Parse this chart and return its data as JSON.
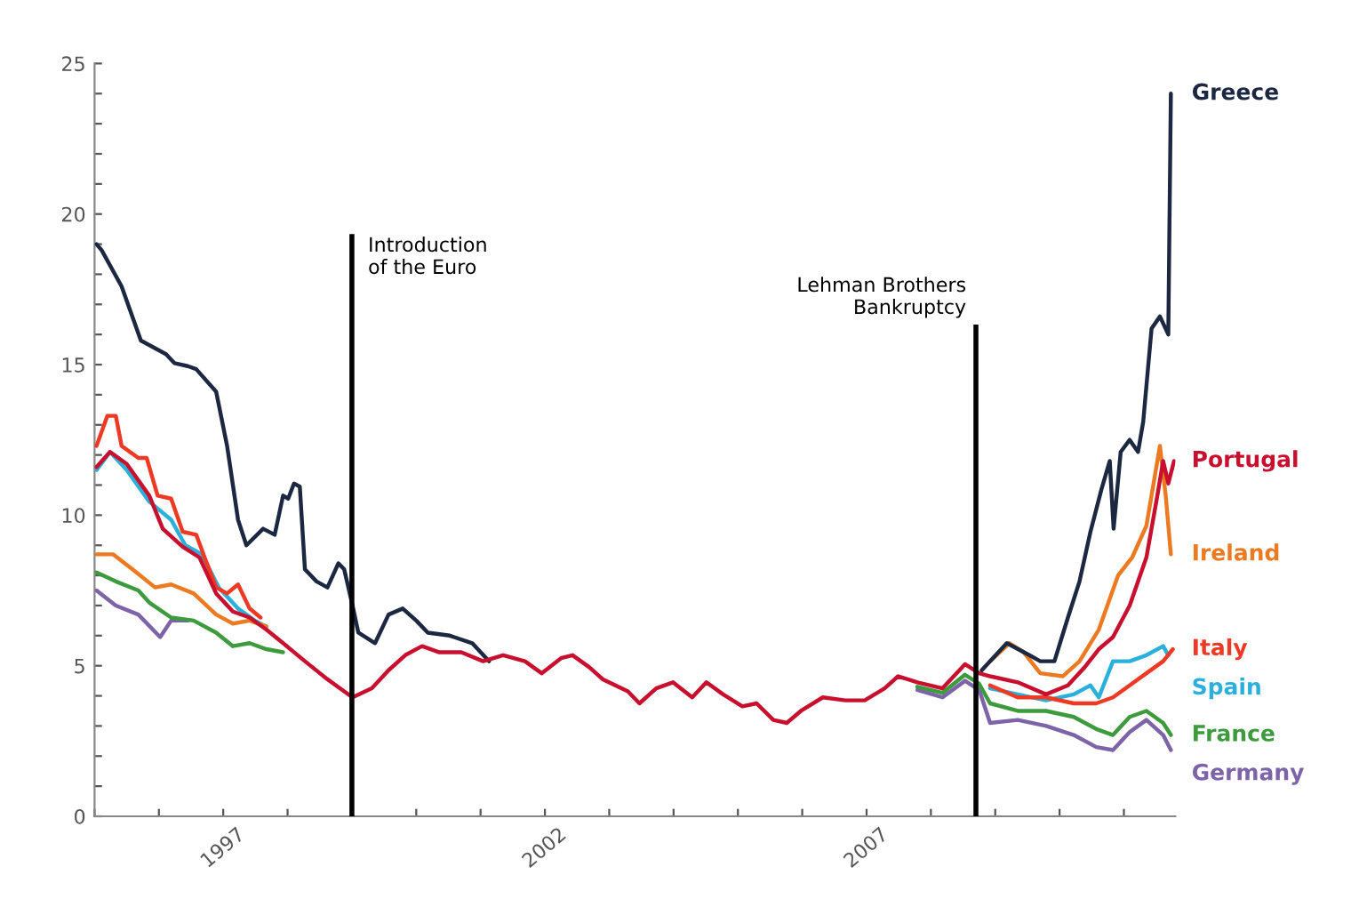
{
  "chart_data": {
    "type": "line",
    "xlim": [
      1995,
      2011.8
    ],
    "ylim": [
      0,
      25
    ],
    "xticks": [
      {
        "value": 1995,
        "label": null
      },
      {
        "value": 1996,
        "label": null
      },
      1997,
      {
        "value": 1998,
        "label": null
      },
      {
        "value": 1999,
        "label": null
      },
      {
        "value": 2000,
        "label": null
      },
      {
        "value": 2001,
        "label": null
      },
      2002,
      {
        "value": 2003,
        "label": null
      },
      {
        "value": 2004,
        "label": null
      },
      {
        "value": 2005,
        "label": null
      },
      {
        "value": 2006,
        "label": null
      },
      2007,
      {
        "value": 2008,
        "label": null
      },
      {
        "value": 2009,
        "label": null
      },
      {
        "value": 2010,
        "label": null
      },
      {
        "value": 2011,
        "label": null
      }
    ],
    "yticks": [
      0,
      {
        "value": 1,
        "label": null
      },
      {
        "value": 2,
        "label": null
      },
      {
        "value": 3,
        "label": null
      },
      {
        "value": 4,
        "label": null
      },
      5,
      {
        "value": 6,
        "label": null
      },
      {
        "value": 7,
        "label": null
      },
      {
        "value": 8,
        "label": null
      },
      {
        "value": 9,
        "label": null
      },
      10,
      {
        "value": 11,
        "label": null
      },
      {
        "value": 12,
        "label": null
      },
      {
        "value": 13,
        "label": null
      },
      {
        "value": 14,
        "label": null
      },
      15,
      {
        "value": 16,
        "label": null
      },
      {
        "value": 17,
        "label": null
      },
      {
        "value": 18,
        "label": null
      },
      {
        "value": 19,
        "label": null
      },
      20,
      {
        "value": 21,
        "label": null
      },
      {
        "value": 22,
        "label": null
      },
      {
        "value": 23,
        "label": null
      },
      {
        "value": 24,
        "label": null
      },
      25
    ],
    "grid": false,
    "legend": false,
    "marker": "none",
    "line_style": "solid",
    "ref_lines": [
      {
        "axis": "x",
        "value": 1999,
        "label": "Introduction\nof the Euro",
        "color": "#000000"
      },
      {
        "axis": "x",
        "value": 2008.7,
        "label": "Lehman Brothers\nBankruptcy",
        "color": "#000000"
      }
    ],
    "series": [
      {
        "name": "Portugal",
        "color": "#c8102e",
        "x": [
          1995.03,
          1995.24,
          1995.5,
          1995.85,
          1996.06,
          1996.37,
          1996.63,
          1996.89,
          1997.15,
          1997.41,
          1997.67,
          1997.93,
          1998.27,
          1998.62,
          1998.88,
          1999.01,
          1999.31,
          1999.57,
          1999.83,
          2000.09,
          2000.35,
          2000.7,
          2001.04,
          2001.35,
          2001.69,
          2001.95,
          2002.25,
          2002.43,
          2002.69,
          2002.9,
          2003.29,
          2003.47,
          2003.73,
          2003.99,
          2004.29,
          2004.51,
          2004.77,
          2005.07,
          2005.29,
          2005.55,
          2005.76,
          2005.98,
          2006.32,
          2006.67,
          2006.97,
          2007.28,
          2007.49,
          2007.79,
          2008.18,
          2008.53,
          2008.75,
          2008.92,
          2009.35,
          2009.79,
          2010.13,
          2010.39,
          2010.61,
          2010.83,
          2011.09,
          2011.35,
          2011.52,
          2011.61,
          2011.69,
          2011.78
        ],
        "values": [
          11.6,
          12.1,
          11.7,
          10.65,
          9.55,
          8.95,
          8.6,
          7.4,
          6.8,
          6.6,
          6.2,
          5.75,
          5.15,
          4.55,
          4.15,
          3.95,
          4.25,
          4.85,
          5.35,
          5.65,
          5.45,
          5.45,
          5.15,
          5.35,
          5.15,
          4.75,
          5.25,
          5.35,
          4.95,
          4.55,
          4.15,
          3.75,
          4.25,
          4.45,
          3.95,
          4.45,
          4.05,
          3.65,
          3.75,
          3.2,
          3.1,
          3.5,
          3.95,
          3.85,
          3.85,
          4.25,
          4.65,
          4.45,
          4.25,
          5.05,
          4.75,
          4.65,
          4.45,
          4.05,
          4.35,
          4.95,
          5.55,
          5.95,
          7.0,
          8.6,
          10.65,
          11.8,
          11.05,
          11.8
        ]
      },
      {
        "name": "Greece",
        "color": "#1c2841",
        "x": [
          1995.03,
          1995.11,
          1995.42,
          1995.72,
          1996.11,
          1996.24,
          1996.45,
          1996.58,
          1996.89,
          1997.06,
          1997.23,
          1997.36,
          1997.62,
          1997.8,
          1997.93,
          1998.01,
          1998.1,
          1998.19,
          1998.27,
          1998.45,
          1998.62,
          1998.79,
          1998.88,
          1999.01,
          1999.1,
          1999.36,
          1999.57,
          1999.79,
          2000.0,
          2000.18,
          2000.52,
          2000.87,
          2001.13,
          2001.35,
          2001.69,
          2001.95,
          2002.25,
          2002.43,
          2002.69,
          2002.9,
          2003.29,
          2003.47,
          2003.73,
          2003.99,
          2004.29,
          2004.51,
          2004.77,
          2005.07,
          2005.29,
          2005.55,
          2005.76,
          2005.98,
          2006.32,
          2006.67,
          2006.97,
          2007.28,
          2007.49,
          2007.79,
          2008.18,
          2008.53,
          2008.79,
          2009.18,
          2009.53,
          2009.7,
          2009.92,
          2010.13,
          2010.31,
          2010.48,
          2010.65,
          2010.78,
          2010.84,
          2010.95,
          2011.09,
          2011.22,
          2011.3,
          2011.43,
          2011.56,
          2011.69,
          2011.73
        ],
        "values": [
          19.0,
          18.8,
          17.6,
          15.8,
          15.35,
          15.05,
          14.95,
          14.85,
          14.1,
          12.3,
          9.85,
          9.0,
          9.55,
          9.35,
          10.65,
          10.55,
          11.05,
          10.95,
          8.2,
          7.8,
          7.6,
          8.4,
          8.2,
          7.0,
          6.1,
          5.75,
          6.7,
          6.9,
          6.5,
          6.1,
          6.0,
          5.75,
          5.15,
          null,
          null,
          null,
          null,
          null,
          null,
          null,
          null,
          null,
          null,
          null,
          null,
          null,
          null,
          null,
          null,
          null,
          null,
          null,
          null,
          null,
          null,
          null,
          null,
          null,
          null,
          null,
          4.85,
          5.75,
          5.35,
          5.15,
          5.15,
          6.6,
          7.8,
          9.45,
          10.85,
          11.8,
          9.55,
          12.1,
          12.5,
          12.1,
          13.1,
          16.2,
          16.6,
          16.0,
          24.0
        ]
      },
      {
        "name": "Ireland",
        "color": "#ec7a22",
        "x": [
          1995.03,
          1995.29,
          1995.59,
          1995.94,
          1996.19,
          1996.54,
          1996.89,
          1997.15,
          1997.41,
          1997.67,
          1997.93,
          1998.27,
          1998.62,
          1998.88,
          1999.01,
          1999.31,
          1999.57,
          1999.83,
          2000.09,
          2000.35,
          2000.7,
          2001.04,
          2001.35,
          2001.69,
          2001.95,
          2002.25,
          2002.43,
          2002.69,
          2002.9,
          2003.29,
          2003.47,
          2003.73,
          2003.99,
          2004.29,
          2004.51,
          2004.77,
          2005.07,
          2005.29,
          2005.55,
          2005.76,
          2005.98,
          2006.32,
          2006.67,
          2006.97,
          2007.28,
          2007.49,
          2007.79,
          2008.18,
          2008.53,
          2008.75,
          2008.92,
          2009.22,
          2009.44,
          2009.7,
          2010.05,
          2010.31,
          2010.61,
          2010.91,
          2011.13,
          2011.35,
          2011.56,
          2011.65,
          2011.73
        ],
        "values": [
          8.7,
          8.7,
          8.2,
          7.6,
          7.7,
          7.4,
          6.7,
          6.4,
          6.5,
          6.3,
          null,
          null,
          null,
          null,
          null,
          null,
          null,
          null,
          null,
          null,
          null,
          null,
          null,
          null,
          null,
          null,
          null,
          null,
          null,
          null,
          null,
          null,
          null,
          null,
          null,
          null,
          null,
          null,
          null,
          null,
          null,
          null,
          null,
          null,
          null,
          null,
          null,
          null,
          null,
          null,
          5.15,
          5.75,
          5.45,
          4.75,
          4.65,
          5.15,
          6.2,
          8.0,
          8.6,
          9.65,
          12.3,
          10.65,
          8.7
        ]
      },
      {
        "name": "Italy",
        "color": "#ee3a24",
        "x": [
          1995.03,
          1995.2,
          1995.33,
          1995.42,
          1995.68,
          1995.81,
          1995.98,
          1996.19,
          1996.37,
          1996.58,
          1996.71,
          1996.89,
          1997.06,
          1997.23,
          1997.41,
          1997.58,
          1997.93,
          1998.27,
          1998.62,
          1998.88,
          1999.01,
          1999.31,
          1999.57,
          1999.83,
          2000.09,
          2000.35,
          2000.7,
          2001.04,
          2001.35,
          2001.69,
          2001.95,
          2002.25,
          2002.43,
          2002.69,
          2002.9,
          2003.29,
          2003.47,
          2003.73,
          2003.99,
          2004.29,
          2004.51,
          2004.77,
          2005.07,
          2005.29,
          2005.55,
          2005.76,
          2005.98,
          2006.32,
          2006.67,
          2006.97,
          2007.28,
          2007.49,
          2007.79,
          2008.18,
          2008.53,
          2008.75,
          2008.92,
          2009.35,
          2009.79,
          2010.22,
          2010.57,
          2010.83,
          2011.09,
          2011.35,
          2011.61,
          2011.76
        ],
        "values": [
          12.3,
          13.3,
          13.3,
          12.3,
          11.9,
          11.9,
          10.65,
          10.55,
          9.45,
          9.35,
          8.6,
          7.6,
          7.4,
          7.7,
          6.9,
          6.6,
          null,
          null,
          null,
          null,
          null,
          null,
          null,
          null,
          null,
          null,
          null,
          null,
          null,
          null,
          null,
          null,
          null,
          null,
          null,
          null,
          null,
          null,
          null,
          null,
          null,
          null,
          null,
          null,
          null,
          null,
          null,
          null,
          null,
          null,
          null,
          null,
          null,
          null,
          null,
          null,
          4.35,
          3.95,
          3.95,
          3.75,
          3.75,
          3.95,
          4.35,
          4.75,
          5.15,
          5.55
        ]
      },
      {
        "name": "Spain",
        "color": "#2bb0dc",
        "x": [
          1995.03,
          1995.24,
          1995.5,
          1995.85,
          1996.19,
          1996.41,
          1996.67,
          1996.93,
          1997.23,
          1997.49,
          1997.67,
          1997.93,
          1998.27,
          1998.62,
          1998.88,
          1999.01,
          1999.31,
          1999.57,
          1999.83,
          2000.09,
          2000.35,
          2000.7,
          2001.04,
          2001.35,
          2001.69,
          2001.95,
          2002.25,
          2002.43,
          2002.69,
          2002.9,
          2003.29,
          2003.47,
          2003.73,
          2003.99,
          2004.29,
          2004.51,
          2004.77,
          2005.07,
          2005.29,
          2005.55,
          2005.76,
          2005.98,
          2006.32,
          2006.67,
          2006.97,
          2007.28,
          2007.49,
          2007.79,
          2008.18,
          2008.53,
          2008.75,
          2008.92,
          2009.35,
          2009.79,
          2010.22,
          2010.48,
          2010.61,
          2010.83,
          2011.09,
          2011.35,
          2011.61,
          2011.69
        ],
        "values": [
          11.5,
          12.1,
          11.5,
          10.45,
          9.85,
          9.0,
          8.7,
          7.6,
          6.9,
          6.5,
          6.3,
          null,
          null,
          null,
          null,
          null,
          null,
          null,
          null,
          null,
          null,
          null,
          null,
          null,
          null,
          null,
          null,
          null,
          null,
          null,
          null,
          null,
          null,
          null,
          null,
          null,
          null,
          null,
          null,
          null,
          null,
          null,
          null,
          null,
          null,
          null,
          null,
          null,
          null,
          null,
          null,
          4.25,
          4.05,
          3.85,
          4.05,
          4.35,
          3.95,
          5.15,
          5.15,
          5.35,
          5.65,
          5.35
        ]
      },
      {
        "name": "France",
        "color": "#3d9a3d",
        "x": [
          1995.03,
          1995.33,
          1995.68,
          1995.85,
          1996.19,
          1996.54,
          1996.89,
          1997.15,
          1997.41,
          1997.67,
          1997.93,
          1998.27,
          1998.62,
          1998.88,
          1999.01,
          1999.31,
          1999.57,
          1999.83,
          2000.09,
          2000.35,
          2000.7,
          2001.04,
          2001.35,
          2001.69,
          2001.95,
          2002.25,
          2002.43,
          2002.69,
          2002.9,
          2003.29,
          2003.47,
          2003.73,
          2003.99,
          2004.29,
          2004.51,
          2004.77,
          2005.07,
          2005.29,
          2005.55,
          2005.76,
          2005.98,
          2006.32,
          2006.67,
          2006.97,
          2007.28,
          2007.49,
          2007.79,
          2008.18,
          2008.53,
          2008.75,
          2008.92,
          2009.35,
          2009.79,
          2010.22,
          2010.57,
          2010.83,
          2011.09,
          2011.35,
          2011.61,
          2011.73
        ],
        "values": [
          8.1,
          7.8,
          7.5,
          7.1,
          6.6,
          6.5,
          6.1,
          5.65,
          5.75,
          5.55,
          5.45,
          null,
          null,
          null,
          null,
          null,
          null,
          null,
          null,
          null,
          null,
          null,
          null,
          null,
          null,
          null,
          null,
          null,
          null,
          null,
          null,
          null,
          null,
          null,
          null,
          null,
          null,
          null,
          null,
          null,
          null,
          null,
          null,
          null,
          null,
          null,
          4.3,
          4.1,
          4.7,
          4.4,
          3.75,
          3.5,
          3.5,
          3.3,
          2.9,
          2.7,
          3.3,
          3.5,
          3.1,
          2.7
        ]
      },
      {
        "name": "Germany",
        "color": "#7d63a8",
        "x": [
          1995.03,
          1995.33,
          1995.68,
          1996.02,
          1996.19,
          1996.45,
          1996.89,
          1997.15,
          1997.41,
          1997.67,
          1997.93,
          1998.27,
          1998.62,
          1998.88,
          1999.01,
          1999.31,
          1999.57,
          1999.83,
          2000.09,
          2000.35,
          2000.7,
          2001.04,
          2001.35,
          2001.69,
          2001.95,
          2002.25,
          2002.43,
          2002.69,
          2002.9,
          2003.29,
          2003.47,
          2003.73,
          2003.99,
          2004.29,
          2004.51,
          2004.77,
          2005.07,
          2005.29,
          2005.55,
          2005.76,
          2005.98,
          2006.32,
          2006.67,
          2006.97,
          2007.28,
          2007.49,
          2007.79,
          2008.18,
          2008.53,
          2008.75,
          2008.92,
          2009.35,
          2009.79,
          2010.22,
          2010.57,
          2010.83,
          2011.09,
          2011.35,
          2011.61,
          2011.73
        ],
        "values": [
          7.5,
          7.0,
          6.7,
          5.95,
          6.5,
          6.5,
          null,
          null,
          null,
          null,
          null,
          null,
          null,
          null,
          null,
          null,
          null,
          null,
          null,
          null,
          null,
          null,
          null,
          null,
          null,
          null,
          null,
          null,
          null,
          null,
          null,
          null,
          null,
          null,
          null,
          null,
          null,
          null,
          null,
          null,
          null,
          null,
          null,
          null,
          null,
          null,
          4.2,
          3.95,
          4.5,
          4.2,
          3.1,
          3.2,
          3.0,
          2.7,
          2.3,
          2.2,
          2.8,
          3.2,
          2.7,
          2.2
        ]
      }
    ]
  }
}
